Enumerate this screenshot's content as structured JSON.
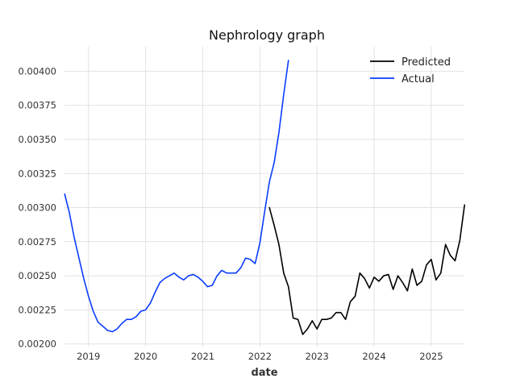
{
  "chart_data": {
    "type": "line",
    "title": "Nephrology graph",
    "xlabel": "date",
    "ylabel": "",
    "xlim": [
      2018.58,
      2025.58
    ],
    "ylim": [
      0.00198,
      0.00418
    ],
    "x_ticks": [
      2019,
      2020,
      2021,
      2022,
      2023,
      2024,
      2025
    ],
    "x_tick_labels": [
      "2019",
      "2020",
      "2021",
      "2022",
      "2023",
      "2024",
      "2025"
    ],
    "y_ticks": [
      0.002,
      0.00225,
      0.0025,
      0.00275,
      0.003,
      0.00325,
      0.0035,
      0.00375,
      0.004
    ],
    "y_tick_labels": [
      "0.00200",
      "0.00225",
      "0.00250",
      "0.00275",
      "0.00300",
      "0.00325",
      "0.00350",
      "0.00375",
      "0.00400"
    ],
    "grid": true,
    "legend_position": "top-right",
    "series": [
      {
        "name": "Predicted",
        "color": "#000000",
        "x": [
          2022.167,
          2022.25,
          2022.333,
          2022.417,
          2022.5,
          2022.583,
          2022.667,
          2022.75,
          2022.833,
          2022.917,
          2023.0,
          2023.083,
          2023.167,
          2023.25,
          2023.333,
          2023.417,
          2023.5,
          2023.583,
          2023.667,
          2023.75,
          2023.833,
          2023.917,
          2024.0,
          2024.083,
          2024.167,
          2024.25,
          2024.333,
          2024.417,
          2024.5,
          2024.583,
          2024.667,
          2024.75,
          2024.833,
          2024.917,
          2025.0,
          2025.083,
          2025.167,
          2025.25,
          2025.333,
          2025.417,
          2025.5,
          2025.583
        ],
        "values": [
          0.003,
          0.00287,
          0.00273,
          0.00252,
          0.00242,
          0.00219,
          0.00218,
          0.00207,
          0.00211,
          0.00217,
          0.00211,
          0.00218,
          0.00218,
          0.00219,
          0.00223,
          0.00223,
          0.00218,
          0.00231,
          0.00235,
          0.00252,
          0.00248,
          0.00241,
          0.00249,
          0.00246,
          0.0025,
          0.00251,
          0.0024,
          0.0025,
          0.00245,
          0.00239,
          0.00255,
          0.00243,
          0.00246,
          0.00258,
          0.00262,
          0.00247,
          0.00252,
          0.00273,
          0.00265,
          0.00261,
          0.00276,
          0.00302
        ]
      },
      {
        "name": "Actual",
        "color": "#0a3cff",
        "x": [
          2018.583,
          2018.667,
          2018.75,
          2018.833,
          2018.917,
          2019.0,
          2019.083,
          2019.167,
          2019.25,
          2019.333,
          2019.417,
          2019.5,
          2019.583,
          2019.667,
          2019.75,
          2019.833,
          2019.917,
          2020.0,
          2020.083,
          2020.167,
          2020.25,
          2020.333,
          2020.417,
          2020.5,
          2020.583,
          2020.667,
          2020.75,
          2020.833,
          2020.917,
          2021.0,
          2021.083,
          2021.167,
          2021.25,
          2021.333,
          2021.417,
          2021.5,
          2021.583,
          2021.667,
          2021.75,
          2021.833,
          2021.917,
          2022.0,
          2022.083,
          2022.167,
          2022.25,
          2022.333,
          2022.417,
          2022.5
        ],
        "values": [
          0.0031,
          0.00296,
          0.00278,
          0.00263,
          0.00248,
          0.00235,
          0.00224,
          0.00216,
          0.00213,
          0.0021,
          0.00209,
          0.00211,
          0.00215,
          0.00218,
          0.00218,
          0.0022,
          0.00224,
          0.00225,
          0.0023,
          0.00238,
          0.00245,
          0.00248,
          0.0025,
          0.00252,
          0.00249,
          0.00247,
          0.0025,
          0.00251,
          0.00249,
          0.00246,
          0.00242,
          0.00243,
          0.0025,
          0.00254,
          0.00252,
          0.00252,
          0.00252,
          0.00256,
          0.00263,
          0.00262,
          0.00259,
          0.00274,
          0.00297,
          0.00319,
          0.00333,
          0.00355,
          0.00383,
          0.00408
        ]
      }
    ]
  }
}
